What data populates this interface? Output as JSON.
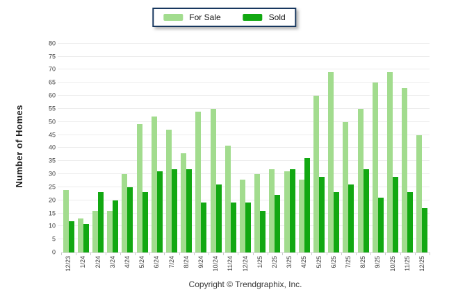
{
  "colors": {
    "for_sale": "#a2dc8e",
    "sold": "#12a812",
    "gridline": "#ececec",
    "axis_line": "#d9d9d9",
    "tick": "#c9c9c9",
    "legend_border": "#17375e"
  },
  "footer": {
    "copyright": "Copyright © Trendgraphix, Inc."
  },
  "chart_data": {
    "type": "bar",
    "title": "",
    "xlabel": "",
    "ylabel": "Number of Homes",
    "ylim": [
      0,
      80
    ],
    "ytick_step": 5,
    "grid": true,
    "legend_position": "top-center",
    "categories": [
      "12/23",
      "1/24",
      "2/24",
      "3/24",
      "4/24",
      "5/24",
      "6/24",
      "7/24",
      "8/24",
      "9/24",
      "10/24",
      "11/24",
      "12/24",
      "1/25",
      "2/25",
      "3/25",
      "4/25",
      "5/25",
      "6/25",
      "7/25",
      "8/25",
      "9/25",
      "10/25",
      "11/25",
      "12/25"
    ],
    "series": [
      {
        "name": "For Sale",
        "values": [
          24,
          13,
          16,
          16,
          30,
          49,
          52,
          47,
          38,
          54,
          55,
          41,
          28,
          30,
          32,
          31,
          28,
          60,
          69,
          50,
          55,
          65,
          69,
          63,
          45
        ]
      },
      {
        "name": "Sold",
        "values": [
          12,
          11,
          23,
          20,
          25,
          23,
          31,
          32,
          32,
          19,
          26,
          19,
          19,
          16,
          22,
          32,
          36,
          29,
          23,
          26,
          32,
          21,
          29,
          23,
          17
        ]
      }
    ]
  }
}
